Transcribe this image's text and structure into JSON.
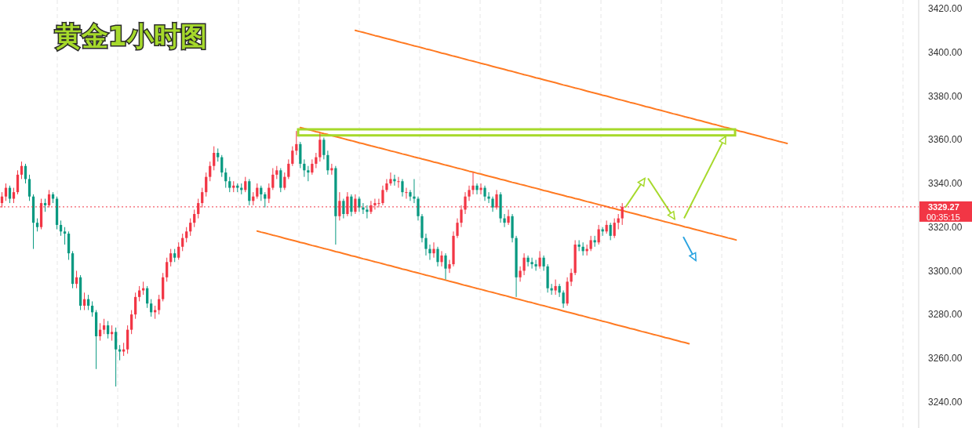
{
  "chart_data": {
    "type": "candlestick",
    "title": "黄金1小时图",
    "categories": [
      null,
      null,
      null,
      null,
      null,
      null,
      null,
      null,
      null,
      null,
      null,
      null,
      null,
      null,
      null,
      null,
      null,
      null,
      null,
      null,
      null,
      null,
      null,
      null,
      null,
      null,
      null,
      null,
      null,
      null,
      null,
      null,
      null,
      null,
      null,
      null,
      null,
      null,
      null,
      null,
      null,
      null,
      null,
      null,
      null,
      null,
      null,
      null,
      null,
      null,
      null,
      null,
      null,
      null,
      null,
      null,
      null,
      null,
      null,
      null,
      null,
      null,
      null,
      null,
      null,
      null,
      null,
      null,
      null,
      null,
      null,
      null,
      null,
      null,
      null,
      null,
      null,
      null,
      null,
      null,
      null,
      null,
      null,
      null,
      null,
      null,
      null,
      null,
      null,
      null,
      null,
      null,
      null,
      null,
      null,
      null,
      null,
      null,
      null,
      null,
      null,
      null,
      null,
      null,
      null,
      null,
      null,
      null,
      null,
      null,
      null,
      null,
      null,
      null,
      null,
      null,
      null,
      null,
      null,
      null,
      null,
      null,
      null,
      null,
      null,
      null,
      null,
      null,
      null,
      null,
      null,
      null,
      null,
      null,
      null,
      null,
      null,
      null,
      null,
      null,
      null,
      null,
      null,
      null,
      null,
      null,
      null,
      null,
      null,
      null,
      null,
      null,
      null,
      null,
      null,
      null,
      null,
      null,
      null,
      null,
      null,
      null,
      null,
      null,
      null,
      null,
      null,
      null,
      null,
      null,
      null,
      null,
      null,
      null,
      null,
      null,
      null,
      null,
      null,
      null,
      null,
      null,
      null,
      null,
      null,
      null,
      null,
      null,
      null,
      null,
      null,
      null,
      null,
      null,
      null,
      null,
      null,
      null,
      null,
      null,
      null,
      null,
      null,
      null,
      null,
      null,
      null,
      null,
      null,
      null,
      null,
      null,
      null,
      null,
      null,
      null,
      null,
      null,
      null,
      null,
      null,
      null,
      null,
      null,
      null,
      null,
      null,
      null,
      null,
      null,
      null,
      null,
      null,
      null
    ],
    "ohlc": [
      [
        3331,
        3336,
        3329,
        3334
      ],
      [
        3334,
        3340,
        3332,
        3338
      ],
      [
        3338,
        3339,
        3331,
        3333
      ],
      [
        3333,
        3338,
        3331,
        3336
      ],
      [
        3336,
        3346,
        3335,
        3344
      ],
      [
        3344,
        3350,
        3342,
        3348
      ],
      [
        3348,
        3349,
        3340,
        3342
      ],
      [
        3342,
        3344,
        3332,
        3334
      ],
      [
        3334,
        3335,
        3310,
        3322
      ],
      [
        3322,
        3324,
        3318,
        3320
      ],
      [
        3320,
        3333,
        3319,
        3331
      ],
      [
        3331,
        3333,
        3327,
        3330
      ],
      [
        3330,
        3337,
        3329,
        3335
      ],
      [
        3335,
        3336,
        3331,
        3333
      ],
      [
        3333,
        3334,
        3319,
        3321
      ],
      [
        3321,
        3323,
        3316,
        3318
      ],
      [
        3318,
        3320,
        3312,
        3317
      ],
      [
        3317,
        3318,
        3305,
        3308
      ],
      [
        3308,
        3309,
        3292,
        3294
      ],
      [
        3294,
        3300,
        3292,
        3297
      ],
      [
        3297,
        3298,
        3282,
        3284
      ],
      [
        3284,
        3290,
        3282,
        3287
      ],
      [
        3287,
        3289,
        3282,
        3284
      ],
      [
        3284,
        3286,
        3279,
        3281
      ],
      [
        3281,
        3282,
        3255,
        3270
      ],
      [
        3270,
        3276,
        3268,
        3273
      ],
      [
        3273,
        3278,
        3271,
        3275
      ],
      [
        3275,
        3277,
        3269,
        3271
      ],
      [
        3271,
        3275,
        3268,
        3272
      ],
      [
        3272,
        3274,
        3247,
        3264
      ],
      [
        3264,
        3266,
        3259,
        3263
      ],
      [
        3263,
        3267,
        3261,
        3264
      ],
      [
        3264,
        3275,
        3262,
        3273
      ],
      [
        3273,
        3282,
        3271,
        3280
      ],
      [
        3280,
        3290,
        3278,
        3288
      ],
      [
        3288,
        3293,
        3286,
        3291
      ],
      [
        3291,
        3295,
        3289,
        3292
      ],
      [
        3292,
        3293,
        3283,
        3285
      ],
      [
        3285,
        3287,
        3279,
        3281
      ],
      [
        3281,
        3284,
        3278,
        3282
      ],
      [
        3282,
        3289,
        3280,
        3287
      ],
      [
        3287,
        3299,
        3286,
        3297
      ],
      [
        3297,
        3306,
        3295,
        3304
      ],
      [
        3304,
        3310,
        3302,
        3308
      ],
      [
        3308,
        3310,
        3304,
        3306
      ],
      [
        3306,
        3313,
        3305,
        3311
      ],
      [
        3311,
        3317,
        3309,
        3315
      ],
      [
        3315,
        3320,
        3313,
        3318
      ],
      [
        3318,
        3324,
        3316,
        3322
      ],
      [
        3322,
        3328,
        3320,
        3326
      ],
      [
        3326,
        3333,
        3324,
        3331
      ],
      [
        3331,
        3338,
        3329,
        3336
      ],
      [
        3336,
        3345,
        3334,
        3343
      ],
      [
        3343,
        3350,
        3341,
        3348
      ],
      [
        3348,
        3357,
        3346,
        3354
      ],
      [
        3354,
        3356,
        3350,
        3352
      ],
      [
        3352,
        3353,
        3343,
        3345
      ],
      [
        3345,
        3347,
        3338,
        3341
      ],
      [
        3341,
        3343,
        3336,
        3338
      ],
      [
        3338,
        3341,
        3336,
        3339
      ],
      [
        3339,
        3340,
        3336,
        3338
      ],
      [
        3338,
        3340,
        3335,
        3337
      ],
      [
        3337,
        3343,
        3336,
        3341
      ],
      [
        3341,
        3342,
        3330,
        3332
      ],
      [
        3332,
        3336,
        3330,
        3334
      ],
      [
        3334,
        3340,
        3333,
        3338
      ],
      [
        3338,
        3339,
        3332,
        3335
      ],
      [
        3335,
        3336,
        3329,
        3333
      ],
      [
        3333,
        3340,
        3331,
        3338
      ],
      [
        3338,
        3347,
        3337,
        3344
      ],
      [
        3344,
        3348,
        3342,
        3346
      ],
      [
        3346,
        3347,
        3336,
        3338
      ],
      [
        3338,
        3345,
        3337,
        3343
      ],
      [
        3343,
        3351,
        3342,
        3349
      ],
      [
        3349,
        3357,
        3348,
        3355
      ],
      [
        3355,
        3364,
        3353,
        3358
      ],
      [
        3358,
        3359,
        3347,
        3349
      ],
      [
        3349,
        3351,
        3343,
        3346
      ],
      [
        3346,
        3348,
        3341,
        3345
      ],
      [
        3345,
        3351,
        3344,
        3349
      ],
      [
        3349,
        3354,
        3347,
        3352
      ],
      [
        3352,
        3363,
        3350,
        3360
      ],
      [
        3360,
        3361,
        3351,
        3353
      ],
      [
        3353,
        3355,
        3344,
        3346
      ],
      [
        3346,
        3349,
        3344,
        3347
      ],
      [
        3347,
        3348,
        3312,
        3325
      ],
      [
        3325,
        3336,
        3323,
        3332
      ],
      [
        3332,
        3333,
        3324,
        3326
      ],
      [
        3326,
        3336,
        3325,
        3334
      ],
      [
        3334,
        3335,
        3325,
        3327
      ],
      [
        3327,
        3335,
        3326,
        3333
      ],
      [
        3333,
        3334,
        3327,
        3329
      ],
      [
        3329,
        3331,
        3326,
        3328
      ],
      [
        3328,
        3330,
        3324,
        3327
      ],
      [
        3327,
        3332,
        3326,
        3330
      ],
      [
        3330,
        3333,
        3328,
        3331
      ],
      [
        3331,
        3333,
        3329,
        3331
      ],
      [
        3331,
        3339,
        3330,
        3337
      ],
      [
        3337,
        3342,
        3336,
        3340
      ],
      [
        3340,
        3345,
        3339,
        3342
      ],
      [
        3342,
        3344,
        3339,
        3341
      ],
      [
        3341,
        3343,
        3338,
        3341
      ],
      [
        3341,
        3342,
        3334,
        3336
      ],
      [
        3336,
        3338,
        3333,
        3336
      ],
      [
        3336,
        3337,
        3332,
        3334
      ],
      [
        3334,
        3342,
        3331,
        3333
      ],
      [
        3333,
        3334,
        3323,
        3325
      ],
      [
        3325,
        3326,
        3313,
        3315
      ],
      [
        3315,
        3317,
        3307,
        3310
      ],
      [
        3310,
        3312,
        3305,
        3308
      ],
      [
        3308,
        3313,
        3306,
        3310
      ],
      [
        3310,
        3311,
        3302,
        3304
      ],
      [
        3304,
        3309,
        3302,
        3307
      ],
      [
        3307,
        3308,
        3296,
        3301
      ],
      [
        3301,
        3305,
        3299,
        3303
      ],
      [
        3303,
        3318,
        3302,
        3316
      ],
      [
        3316,
        3324,
        3315,
        3322
      ],
      [
        3322,
        3330,
        3320,
        3328
      ],
      [
        3328,
        3336,
        3326,
        3334
      ],
      [
        3334,
        3339,
        3332,
        3337
      ],
      [
        3337,
        3345,
        3335,
        3339
      ],
      [
        3339,
        3340,
        3335,
        3337
      ],
      [
        3337,
        3340,
        3335,
        3338
      ],
      [
        3338,
        3339,
        3332,
        3334
      ],
      [
        3334,
        3336,
        3331,
        3333
      ],
      [
        3333,
        3334,
        3327,
        3329
      ],
      [
        3329,
        3337,
        3328,
        3335
      ],
      [
        3335,
        3336,
        3322,
        3324
      ],
      [
        3324,
        3326,
        3320,
        3322
      ],
      [
        3322,
        3328,
        3321,
        3325
      ],
      [
        3325,
        3326,
        3313,
        3315
      ],
      [
        3315,
        3316,
        3288,
        3297
      ],
      [
        3297,
        3302,
        3295,
        3300
      ],
      [
        3300,
        3308,
        3298,
        3306
      ],
      [
        3306,
        3307,
        3302,
        3304
      ],
      [
        3304,
        3306,
        3301,
        3303
      ],
      [
        3303,
        3305,
        3300,
        3302
      ],
      [
        3302,
        3309,
        3301,
        3306
      ],
      [
        3306,
        3307,
        3300,
        3302
      ],
      [
        3302,
        3303,
        3290,
        3292
      ],
      [
        3292,
        3294,
        3289,
        3291
      ],
      [
        3291,
        3296,
        3289,
        3293
      ],
      [
        3293,
        3294,
        3288,
        3290
      ],
      [
        3290,
        3291,
        3283,
        3285
      ],
      [
        3285,
        3297,
        3284,
        3295
      ],
      [
        3295,
        3301,
        3293,
        3299
      ],
      [
        3299,
        3314,
        3298,
        3312
      ],
      [
        3312,
        3314,
        3309,
        3311
      ],
      [
        3311,
        3313,
        3307,
        3309
      ],
      [
        3309,
        3312,
        3307,
        3310
      ],
      [
        3310,
        3316,
        3309,
        3314
      ],
      [
        3314,
        3316,
        3311,
        3313
      ],
      [
        3313,
        3321,
        3312,
        3319
      ],
      [
        3319,
        3320,
        3316,
        3318
      ],
      [
        3318,
        3323,
        3317,
        3321
      ],
      [
        3321,
        3322,
        3314,
        3316
      ],
      [
        3316,
        3324,
        3315,
        3322
      ],
      [
        3322,
        3326,
        3319,
        3324
      ],
      [
        3324,
        3331,
        3321,
        3329.27
      ],
      null,
      null,
      null,
      null,
      null,
      null,
      null,
      null,
      null,
      null,
      null,
      null,
      null,
      null,
      null,
      null,
      null,
      null,
      null,
      null,
      null,
      null,
      null,
      null,
      null,
      null,
      null,
      null,
      null,
      null,
      null,
      null,
      null,
      null,
      null,
      null,
      null,
      null,
      null,
      null,
      null,
      null,
      null,
      null,
      null,
      null,
      null,
      null,
      null,
      null,
      null,
      null,
      null,
      null,
      null,
      null,
      null,
      null,
      null,
      null,
      null,
      null,
      null,
      null,
      null,
      null,
      null,
      null,
      null,
      null,
      null,
      null,
      null,
      null,
      null
    ],
    "ylim": [
      3228,
      3424
    ],
    "yticks": [
      {
        "value": 3240,
        "label": "3240.00"
      },
      {
        "value": 3260,
        "label": "3260.00"
      },
      {
        "value": 3280,
        "label": "3280.00"
      },
      {
        "value": 3300,
        "label": "3300.00"
      },
      {
        "value": 3320,
        "label": "3320.00"
      },
      {
        "value": 3340,
        "label": "3340.00"
      },
      {
        "value": 3360,
        "label": "3360.00"
      },
      {
        "value": 3380,
        "label": "3380.00"
      },
      {
        "value": 3400,
        "label": "3400.00"
      },
      {
        "value": 3420,
        "label": "3420.00"
      }
    ],
    "grid": "x",
    "tick_labels": "y",
    "series": [
      {
        "type": "line",
        "color": "#ff7a22",
        "values": [
          null,
          null,
          null,
          null,
          null,
          null,
          null,
          null,
          null,
          null,
          null,
          null,
          null,
          null,
          null,
          null,
          null,
          null,
          null,
          null,
          null,
          null,
          null,
          null,
          null,
          null,
          null,
          null,
          null,
          null,
          null,
          null,
          null,
          null,
          null,
          null,
          null,
          null,
          null,
          null,
          null,
          null,
          null,
          null,
          null,
          null,
          null,
          null,
          null,
          null,
          null,
          null,
          null,
          null,
          null,
          null,
          null,
          null,
          null,
          null,
          null,
          null,
          null,
          null,
          null,
          null,
          null,
          null,
          null,
          null,
          null,
          null,
          null,
          null,
          null,
          null,
          null,
          null,
          null,
          null,
          null,
          null,
          null,
          null,
          null,
          null,
          null,
          null,
          null,
          null,
          3410.1,
          3409.6,
          3409.2,
          3408.7,
          3408.2,
          3407.7,
          3407.3,
          3406.8,
          3406.3,
          3405.9,
          3405.4,
          3404.9,
          3404.4,
          3404.0,
          3403.5,
          3403.0,
          3402.6,
          3402.1,
          3401.6,
          3401.2,
          3400.7,
          3400.2,
          3399.7,
          3399.3,
          3398.8,
          3398.3,
          3397.9,
          3397.4,
          3396.9,
          3396.4,
          3396.0,
          3395.5,
          3395.0,
          3394.6,
          3394.1,
          3393.6,
          3393.1,
          3392.7,
          3392.2,
          3391.7,
          3391.3,
          3390.8,
          3390.3,
          3389.8,
          3389.4,
          3388.9,
          3388.4,
          3388.0,
          3387.5,
          3387.0,
          3386.6,
          3386.1,
          3385.6,
          3385.1,
          3384.7,
          3384.2,
          3383.7,
          3383.3,
          3382.8,
          3382.3,
          3381.8,
          3381.4,
          3380.9,
          3380.4,
          3380.0,
          3379.5,
          3379.0,
          3378.5,
          3378.1,
          3377.6,
          3377.1,
          3376.7,
          3376.2,
          3375.7,
          3375.2,
          3374.8,
          3374.3,
          3373.8,
          3373.4,
          3372.9,
          3372.4,
          3371.9,
          3371.5,
          3371.0,
          3370.5,
          3370.1,
          3369.6,
          3369.1,
          3368.7,
          3368.2,
          3367.7,
          3367.2,
          3366.8,
          3366.3,
          3365.8,
          3365.4,
          3364.9,
          3364.4,
          3363.9,
          3363.5,
          3363.0,
          3362.5,
          3362.1,
          3361.6,
          3361.1,
          3360.6,
          3360.2,
          3359.7,
          3359.2,
          3358.8,
          3358.3,
          null,
          null,
          null,
          null,
          null,
          null,
          null,
          null,
          null,
          null,
          null,
          null,
          null,
          null,
          null,
          null,
          null,
          null,
          null,
          null,
          null,
          null,
          null,
          null,
          null,
          null,
          null,
          null,
          null,
          null,
          null,
          null,
          null
        ]
      },
      {
        "type": "line",
        "color": "#ff7a22",
        "values": [
          null,
          null,
          null,
          null,
          null,
          null,
          null,
          null,
          null,
          null,
          null,
          null,
          null,
          null,
          null,
          null,
          null,
          null,
          null,
          null,
          null,
          null,
          null,
          null,
          null,
          null,
          null,
          null,
          null,
          null,
          null,
          null,
          null,
          null,
          null,
          null,
          null,
          null,
          null,
          null,
          null,
          null,
          null,
          null,
          null,
          null,
          null,
          null,
          null,
          null,
          null,
          null,
          null,
          null,
          null,
          null,
          null,
          null,
          null,
          null,
          null,
          null,
          null,
          null,
          null,
          null,
          null,
          null,
          null,
          null,
          null,
          null,
          null,
          null,
          null,
          null,
          3365.6,
          3365.1,
          3364.7,
          3364.2,
          3363.7,
          3363.3,
          3362.8,
          3362.4,
          3361.9,
          3361.4,
          3361.0,
          3360.5,
          3360.0,
          3359.6,
          3359.1,
          3358.6,
          3358.2,
          3357.7,
          3357.2,
          3356.8,
          3356.3,
          3355.9,
          3355.4,
          3354.9,
          3354.5,
          3354.0,
          3353.5,
          3353.1,
          3352.6,
          3352.1,
          3351.7,
          3351.2,
          3350.8,
          3350.3,
          3349.8,
          3349.4,
          3348.9,
          3348.4,
          3348.0,
          3347.5,
          3347.0,
          3346.6,
          3346.1,
          3345.6,
          3345.2,
          3344.7,
          3344.3,
          3343.8,
          3343.3,
          3342.9,
          3342.4,
          3341.9,
          3341.5,
          3341.0,
          3340.5,
          3340.1,
          3339.6,
          3339.2,
          3338.7,
          3338.2,
          3337.8,
          3337.3,
          3336.8,
          3336.4,
          3335.9,
          3335.4,
          3335.0,
          3334.5,
          3334.0,
          3333.6,
          3333.1,
          3332.7,
          3332.2,
          3331.7,
          3331.3,
          3330.8,
          3330.3,
          3329.9,
          3329.4,
          3328.9,
          3328.5,
          3328.0,
          3327.6,
          3327.1,
          3326.6,
          3326.2,
          3325.7,
          3325.2,
          3324.8,
          3324.3,
          3323.8,
          3323.4,
          3322.9,
          3322.4,
          3322.0,
          3321.5,
          3321.1,
          3320.6,
          3320.1,
          3319.7,
          3319.2,
          3318.7,
          3318.3,
          3317.8,
          3317.3,
          3316.9,
          3316.4,
          3316.0,
          3315.5,
          3315.0,
          3314.6,
          3314.1,
          null,
          null,
          null,
          null,
          null,
          null,
          null,
          null,
          null,
          null,
          null,
          null,
          null,
          null,
          null,
          null,
          null,
          null,
          null,
          null,
          null,
          null,
          null,
          null,
          null,
          null,
          null,
          null,
          null,
          null,
          null,
          null,
          null,
          null,
          null,
          null,
          null,
          null,
          null,
          null,
          null,
          null,
          null,
          null,
          null,
          null
        ]
      },
      {
        "type": "line",
        "color": "#ff7a22",
        "values": [
          null,
          null,
          null,
          null,
          null,
          null,
          null,
          null,
          null,
          null,
          null,
          null,
          null,
          null,
          null,
          null,
          null,
          null,
          null,
          null,
          null,
          null,
          null,
          null,
          null,
          null,
          null,
          null,
          null,
          null,
          null,
          null,
          null,
          null,
          null,
          null,
          null,
          null,
          null,
          null,
          null,
          null,
          null,
          null,
          null,
          null,
          null,
          null,
          null,
          null,
          null,
          null,
          null,
          null,
          null,
          null,
          null,
          null,
          null,
          null,
          null,
          null,
          null,
          null,
          null,
          3318.2,
          3317.7,
          3317.3,
          3316.8,
          3316.3,
          3315.9,
          3315.4,
          3314.9,
          3314.4,
          3314.0,
          3313.5,
          3313.0,
          3312.6,
          3312.1,
          3311.6,
          3311.2,
          3310.7,
          3310.2,
          3309.8,
          3309.3,
          3308.8,
          3308.4,
          3307.9,
          3307.4,
          3306.9,
          3306.5,
          3306.0,
          3305.5,
          3305.1,
          3304.6,
          3304.1,
          3303.7,
          3303.2,
          3302.7,
          3302.3,
          3301.8,
          3301.3,
          3300.8,
          3300.4,
          3299.9,
          3299.4,
          3299.0,
          3298.5,
          3298.0,
          3297.6,
          3297.1,
          3296.6,
          3296.2,
          3295.7,
          3295.2,
          3294.8,
          3294.3,
          3293.8,
          3293.3,
          3292.9,
          3292.4,
          3291.9,
          3291.5,
          3291.0,
          3290.5,
          3290.1,
          3289.6,
          3289.1,
          3288.7,
          3288.2,
          3287.7,
          3287.2,
          3286.8,
          3286.3,
          3285.8,
          3285.4,
          3284.9,
          3284.4,
          3284.0,
          3283.5,
          3283.0,
          3282.6,
          3282.1,
          3281.6,
          3281.1,
          3280.7,
          3280.2,
          3279.7,
          3279.3,
          3278.8,
          3278.3,
          3277.9,
          3277.4,
          3276.9,
          3276.5,
          3276.0,
          3275.5,
          3275.0,
          3274.6,
          3274.1,
          3273.6,
          3273.2,
          3272.7,
          3272.2,
          3271.8,
          3271.3,
          3270.8,
          3270.4,
          3269.9,
          3269.4,
          3269.0,
          3268.5,
          3268.0,
          3267.5,
          3267.1,
          3266.6,
          null,
          null,
          null,
          null,
          null,
          null,
          null,
          null,
          null,
          null,
          null,
          null,
          null,
          null,
          null,
          null,
          null,
          null,
          null,
          null,
          null,
          null,
          null,
          null,
          null,
          null,
          null,
          null,
          null,
          null,
          null,
          null,
          null,
          null,
          null,
          null,
          null,
          null,
          null,
          null,
          null,
          null,
          null,
          null,
          null,
          null,
          null,
          null,
          null,
          null,
          null,
          null,
          null,
          null,
          null,
          null,
          null,
          null
        ]
      }
    ],
    "ref_lines": [
      {
        "axis": "y",
        "value": 3329.27,
        "label": "3329.27",
        "color": "#f23645",
        "line_style": "dotted"
      }
    ],
    "annotations": [
      "00:35:15"
    ]
  }
}
